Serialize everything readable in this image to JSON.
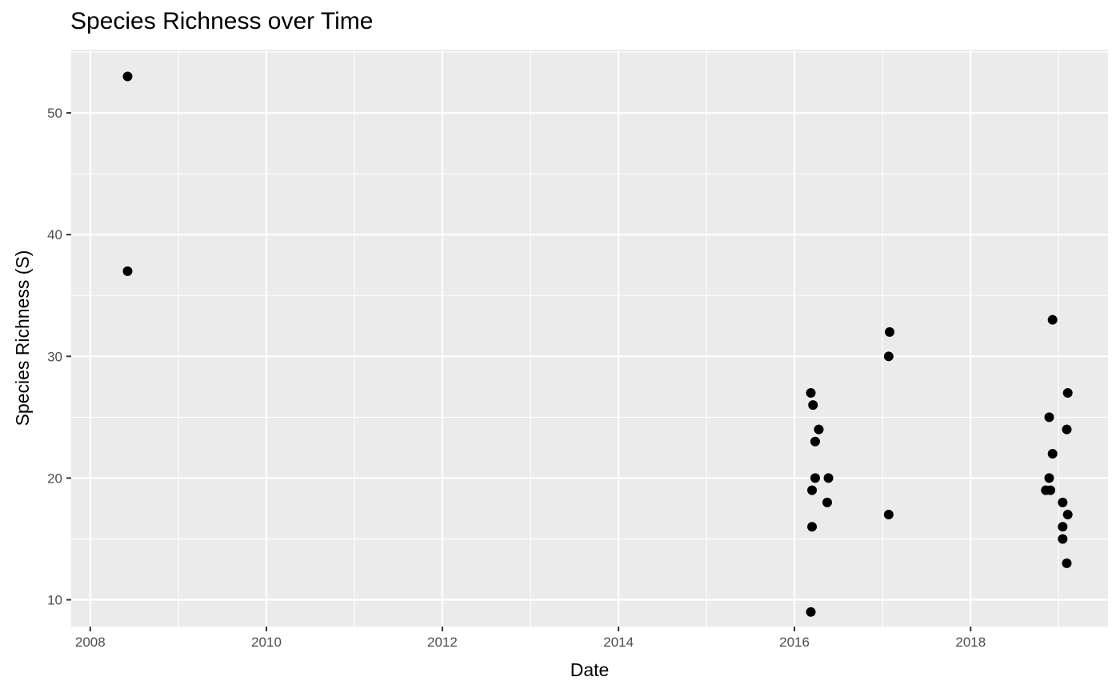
{
  "chart_data": {
    "type": "scatter",
    "title": "Species Richness over Time",
    "xlabel": "Date",
    "ylabel": "Species Richness (S)",
    "x_axis_type": "date",
    "xlim": [
      "2007-10-14",
      "2019-07-25"
    ],
    "ylim": [
      7.8,
      55.2
    ],
    "x_ticks": [
      "2008",
      "2010",
      "2012",
      "2014",
      "2016",
      "2018"
    ],
    "y_ticks": [
      10,
      20,
      30,
      40,
      50
    ],
    "grid": true,
    "legend": "none",
    "point_color": "#000000",
    "background_color": "#ebebeb",
    "grid_color": "#ffffff",
    "points": [
      {
        "x": "2008-06-04",
        "y": 53
      },
      {
        "x": "2008-06-04",
        "y": 37
      },
      {
        "x": "2016-03-09",
        "y": 27
      },
      {
        "x": "2016-03-18",
        "y": 26
      },
      {
        "x": "2016-04-11",
        "y": 24
      },
      {
        "x": "2016-03-27",
        "y": 23
      },
      {
        "x": "2016-03-27",
        "y": 20
      },
      {
        "x": "2016-05-21",
        "y": 20
      },
      {
        "x": "2016-03-14",
        "y": 19
      },
      {
        "x": "2016-05-16",
        "y": 18
      },
      {
        "x": "2016-03-14",
        "y": 16
      },
      {
        "x": "2016-03-09",
        "y": 9
      },
      {
        "x": "2017-01-30",
        "y": 32
      },
      {
        "x": "2017-01-26",
        "y": 30
      },
      {
        "x": "2017-01-26",
        "y": 17
      },
      {
        "x": "2018-12-07",
        "y": 33
      },
      {
        "x": "2019-02-08",
        "y": 27
      },
      {
        "x": "2018-11-23",
        "y": 25
      },
      {
        "x": "2019-02-04",
        "y": 24
      },
      {
        "x": "2018-12-07",
        "y": 22
      },
      {
        "x": "2018-11-23",
        "y": 20
      },
      {
        "x": "2018-11-09",
        "y": 19
      },
      {
        "x": "2018-11-28",
        "y": 19
      },
      {
        "x": "2019-01-18",
        "y": 18
      },
      {
        "x": "2019-02-08",
        "y": 17
      },
      {
        "x": "2019-01-18",
        "y": 16
      },
      {
        "x": "2019-01-18",
        "y": 15
      },
      {
        "x": "2019-02-04",
        "y": 13
      }
    ]
  }
}
